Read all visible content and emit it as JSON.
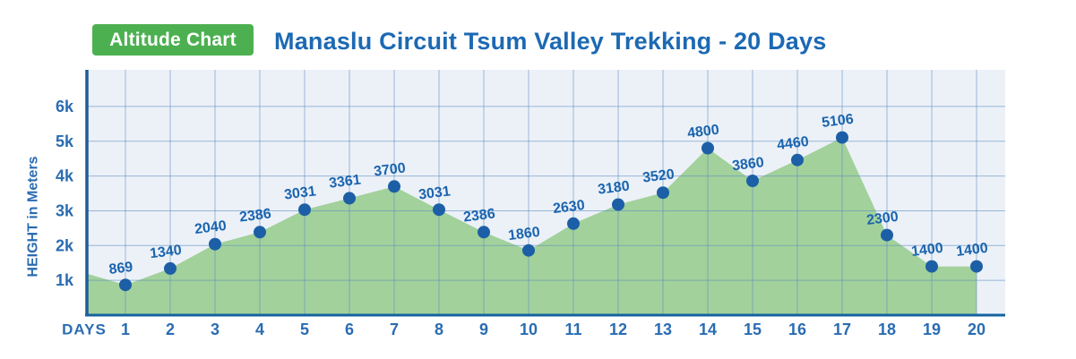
{
  "header": {
    "badge_label": "Altitude Chart",
    "title": "Manaslu Circuit Tsum Valley Trekking - 20 Days"
  },
  "chart_data": {
    "type": "area",
    "title": "Manaslu Circuit Tsum Valley Trekking - 20 Days",
    "xlabel": "DAYS",
    "ylabel": "HEIGHT in Meters",
    "categories": [
      "1",
      "2",
      "3",
      "4",
      "5",
      "6",
      "7",
      "8",
      "9",
      "10",
      "11",
      "12",
      "13",
      "14",
      "15",
      "16",
      "17",
      "18",
      "19",
      "20"
    ],
    "values": [
      869,
      1340,
      2040,
      2386,
      3031,
      3361,
      3700,
      3031,
      2386,
      1860,
      2630,
      3180,
      3520,
      4800,
      3860,
      4460,
      5106,
      2300,
      1400,
      1400
    ],
    "point_labels": [
      "869",
      "1340",
      "2040",
      "2386",
      "3031",
      "3361",
      "3700",
      "3031",
      "2386",
      "1860",
      "2630",
      "3180",
      "3520",
      "4800",
      "3860",
      "4460",
      "5106",
      "2300",
      "1400",
      "1400"
    ],
    "area_start_value": 1200,
    "ylim": [
      0,
      7050
    ],
    "yticks": [
      {
        "label": "1k",
        "value": 1000
      },
      {
        "label": "2k",
        "value": 2000
      },
      {
        "label": "3k",
        "value": 3000
      },
      {
        "label": "4k",
        "value": 4000
      },
      {
        "label": "5k",
        "value": 5000
      },
      {
        "label": "6k",
        "value": 6000
      }
    ],
    "grid": true,
    "legend_position": "none"
  },
  "colors": {
    "badge_bg": "#4CB050",
    "badge_text": "#FFFFFF",
    "title_text": "#1C69B3",
    "plot_bg": "#ECF1F8",
    "grid_line": "#5F8FBE",
    "y_axis_line": "#1E5C96",
    "x_axis_line": "#15639E",
    "area_fill": "#A2D19B",
    "dot_fill": "#1D5FA6",
    "value_label": "#1A64AE",
    "tick_label": "#2A6CB2"
  }
}
